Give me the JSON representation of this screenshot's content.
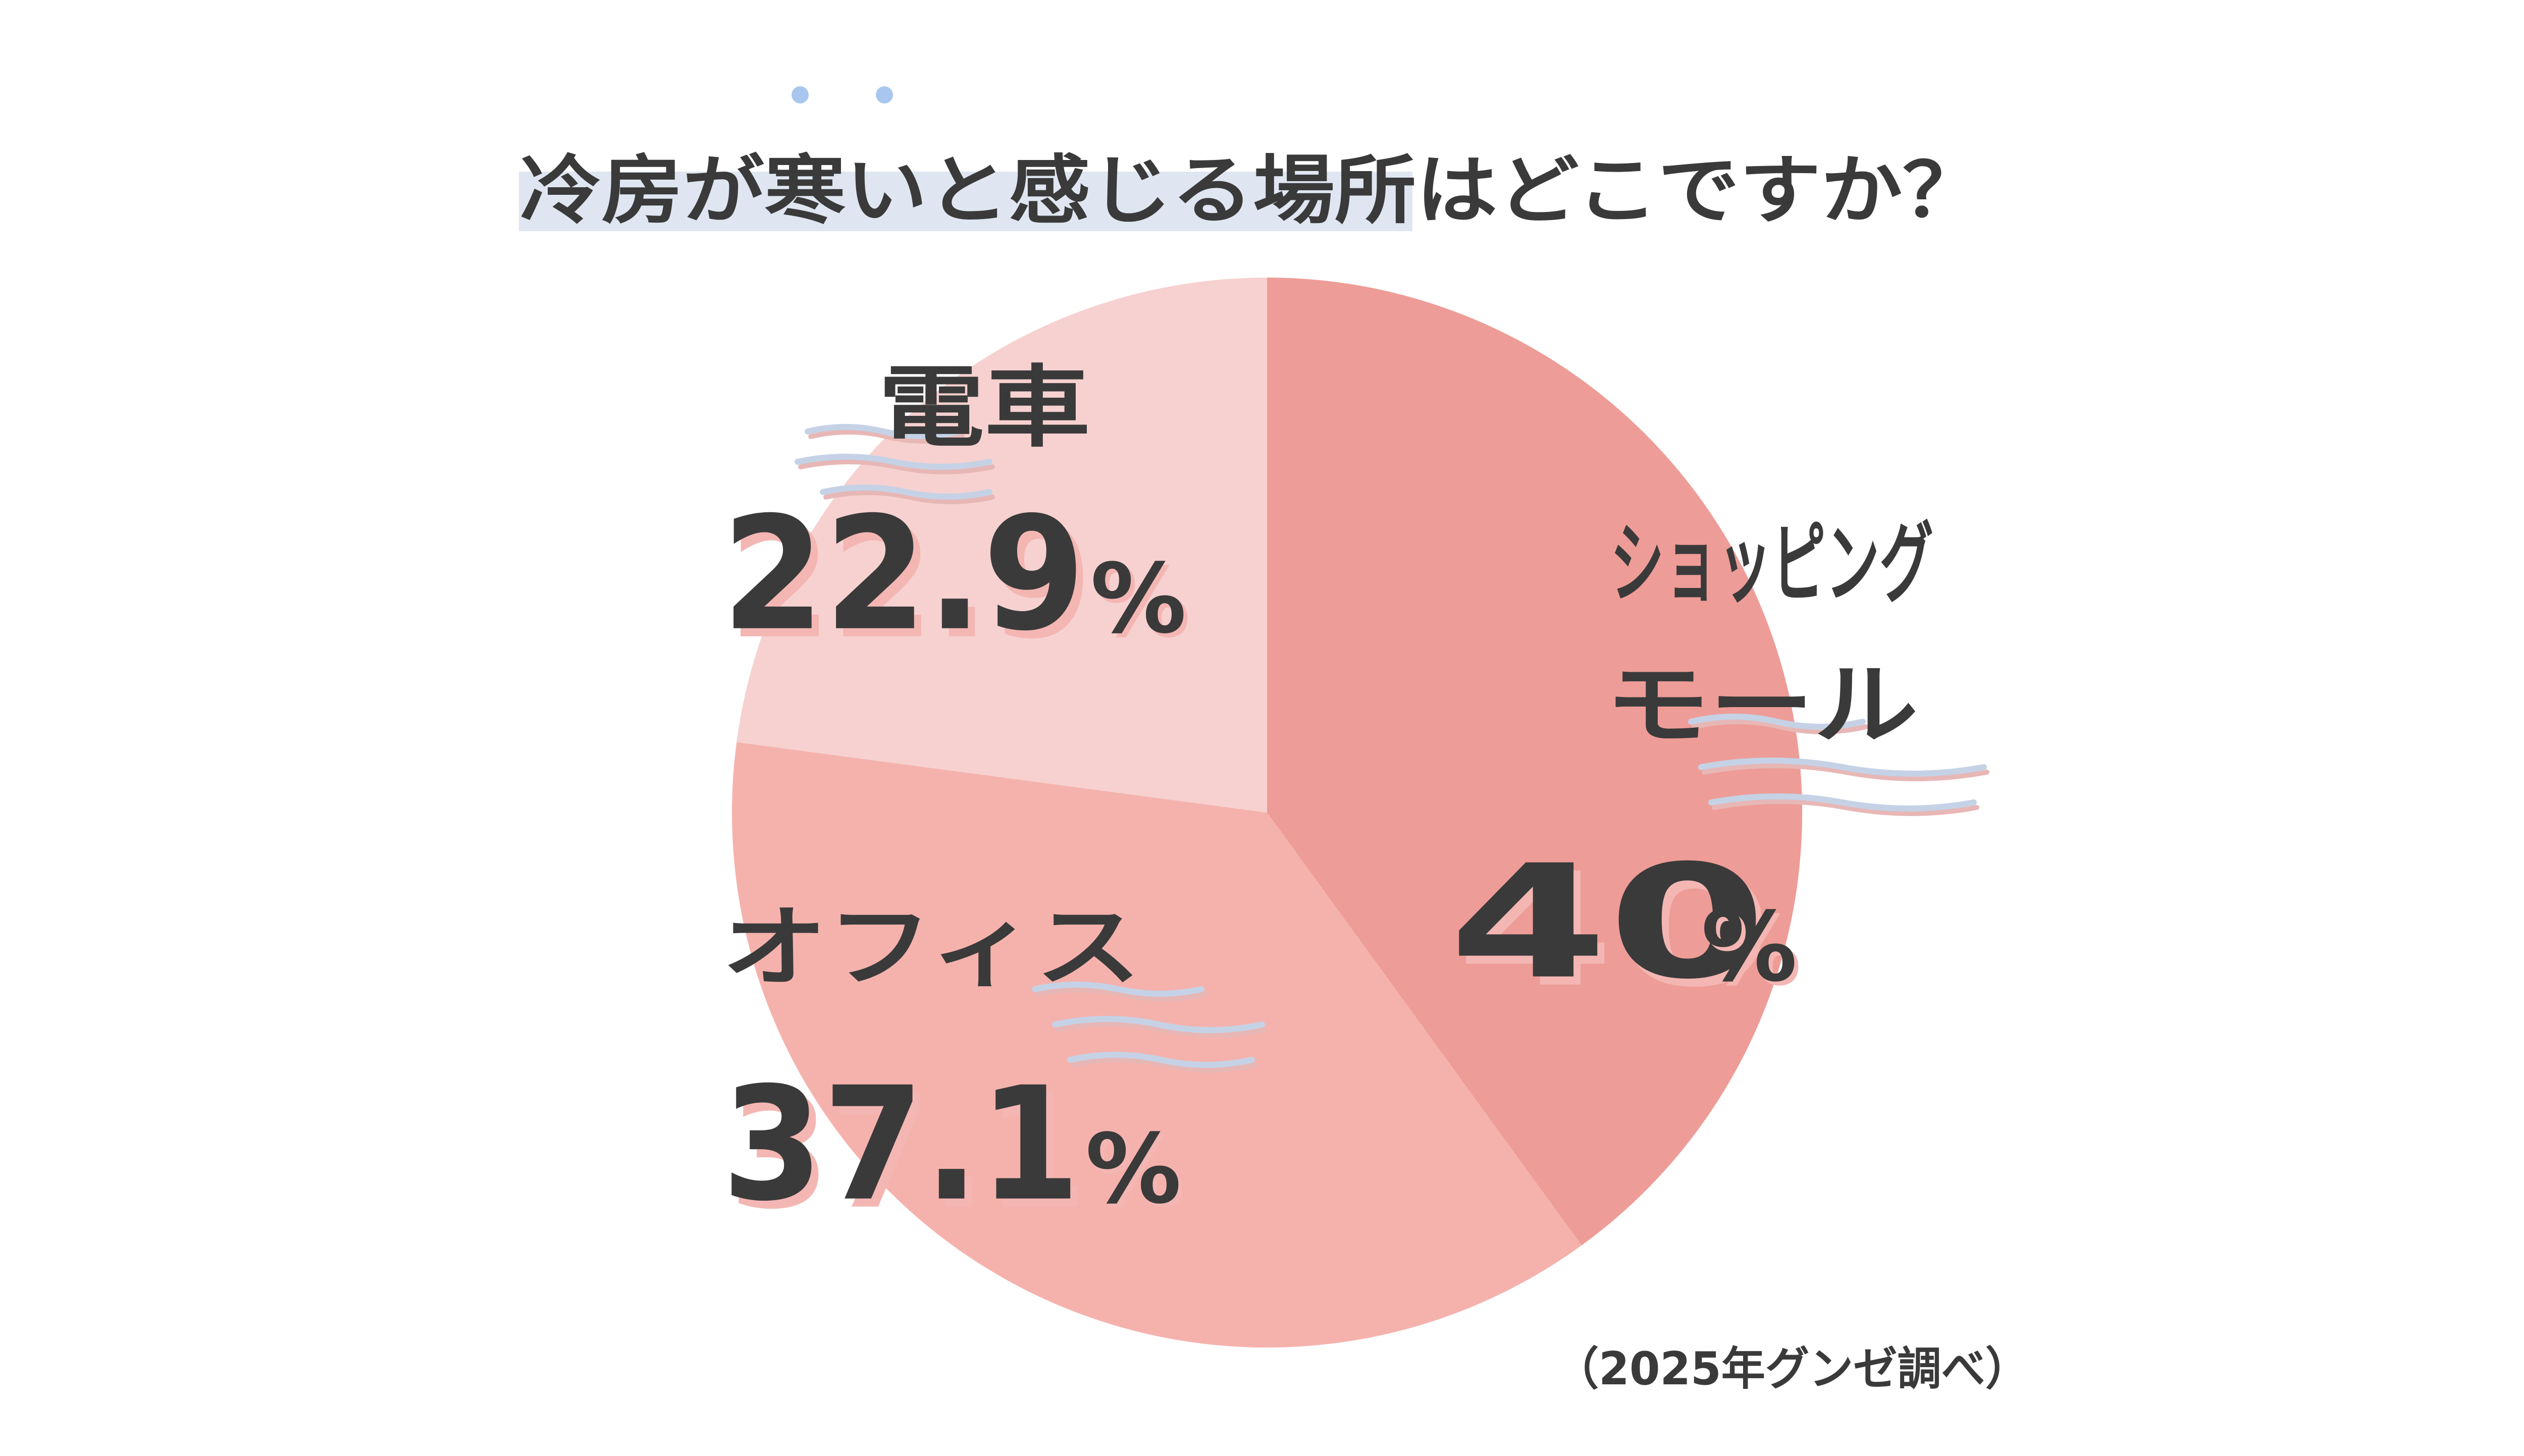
{
  "chart_data": {
    "type": "pie",
    "title": "冷房が寒いと感じる場所はどこですか？",
    "source_note": "（2025年グンゼ調べ）",
    "unit": "%",
    "slices": [
      {
        "label": [
          "ショッピング",
          "モール"
        ],
        "value": 40,
        "display": "40",
        "color": "#ee9c97"
      },
      {
        "label": [
          "オフィス"
        ],
        "value": 37.1,
        "display": "37.1",
        "color": "#f5b2ad"
      },
      {
        "label": [
          "電車"
        ],
        "value": 22.9,
        "display": "22.9",
        "color": "#f6d1d0"
      }
    ],
    "colors": {
      "text": "#3a3a3a",
      "title_highlight": "#dfe6f1",
      "title_dots": "#a9c6ee",
      "value_shadow": "#f4b6b3",
      "wind": "#c5d2e6",
      "wind_shadow": "#e7b7b6"
    }
  }
}
